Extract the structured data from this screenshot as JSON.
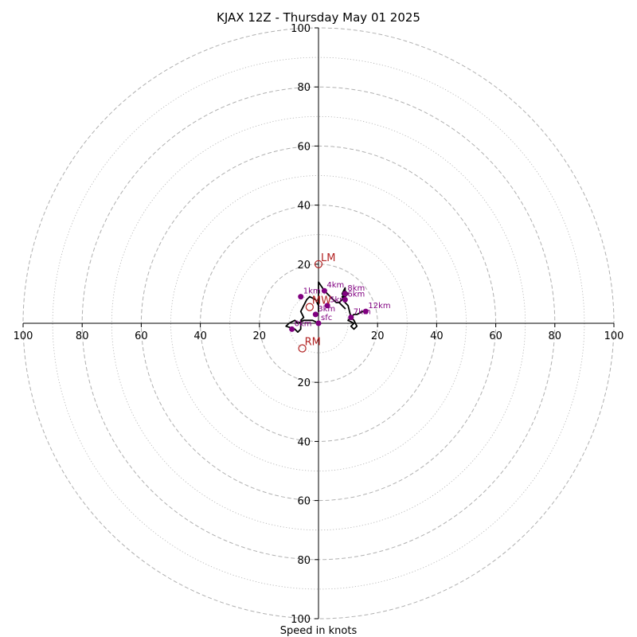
{
  "chart_data": {
    "type": "hodograph",
    "title": "KJAX 12Z - Thursday May 01 2025",
    "xlabel": "Speed in knots",
    "units": "knots",
    "range_max": 100,
    "rings_major": [
      20,
      40,
      60,
      80,
      100
    ],
    "rings_minor": [
      10,
      30,
      50,
      70,
      90
    ],
    "x_ticks": [
      -100,
      -80,
      -60,
      -40,
      -20,
      20,
      40,
      60,
      80,
      100
    ],
    "x_tick_labels": [
      "100",
      "80",
      "60",
      "40",
      "20",
      "20",
      "40",
      "60",
      "80",
      "100"
    ],
    "y_ticks": [
      100,
      80,
      60,
      40,
      20,
      -20,
      -40,
      -60,
      -80,
      -100
    ],
    "y_tick_labels": [
      "100",
      "80",
      "60",
      "40",
      "20",
      "20",
      "40",
      "60",
      "80",
      "100"
    ],
    "trace": {
      "u": [
        0,
        -2,
        -5,
        -7,
        -8,
        -10,
        -11,
        -8,
        -7,
        -6,
        -6,
        -5,
        -6,
        -4,
        -3,
        -1,
        0,
        0,
        0,
        0,
        0,
        2,
        3,
        4,
        5,
        6,
        7,
        8,
        9,
        8,
        7,
        8,
        9,
        10,
        9,
        9,
        8,
        9,
        8,
        9,
        10,
        11,
        12,
        13,
        12,
        11,
        12,
        10,
        11,
        12,
        13,
        15,
        16
      ],
      "v": [
        0,
        1,
        1,
        0,
        1,
        0,
        -1,
        -2,
        -3,
        -2,
        1,
        2,
        4,
        8,
        9,
        8,
        6,
        4,
        6,
        10,
        14,
        11,
        10,
        9,
        8,
        7,
        7,
        6,
        5,
        6,
        7,
        8,
        9,
        10,
        11,
        12,
        10,
        8,
        9,
        7,
        6,
        2,
        1,
        -1,
        -2,
        -1,
        0,
        1,
        2,
        3,
        3,
        4,
        4
      ]
    },
    "height_markers": [
      {
        "label": "sfc",
        "u": 0,
        "v": 0
      },
      {
        "label": "1km",
        "u": -6,
        "v": 9
      },
      {
        "label": "3km",
        "u": -1,
        "v": 3
      },
      {
        "label": "4km",
        "u": 2,
        "v": 11
      },
      {
        "label": "5km",
        "u": 3,
        "v": 6
      },
      {
        "label": "6km",
        "u": 9,
        "v": 8
      },
      {
        "label": "7km",
        "u": 11,
        "v": 2
      },
      {
        "label": "8km",
        "u": 9,
        "v": 10
      },
      {
        "label": "12km",
        "u": 16,
        "v": 4
      },
      {
        "label": "0km",
        "u": -9,
        "v": -2
      }
    ],
    "motion_markers": [
      {
        "label": "LM",
        "u": 0,
        "v": 20
      },
      {
        "label": "RM",
        "u": -5.5,
        "v": -8.5
      },
      {
        "label": "MW",
        "u": -3,
        "v": 5.5
      }
    ],
    "colors": {
      "trace": "#000000",
      "height_markers": "#800080",
      "motion_markers": "#b22222",
      "rings": "#b0b0b0"
    }
  }
}
